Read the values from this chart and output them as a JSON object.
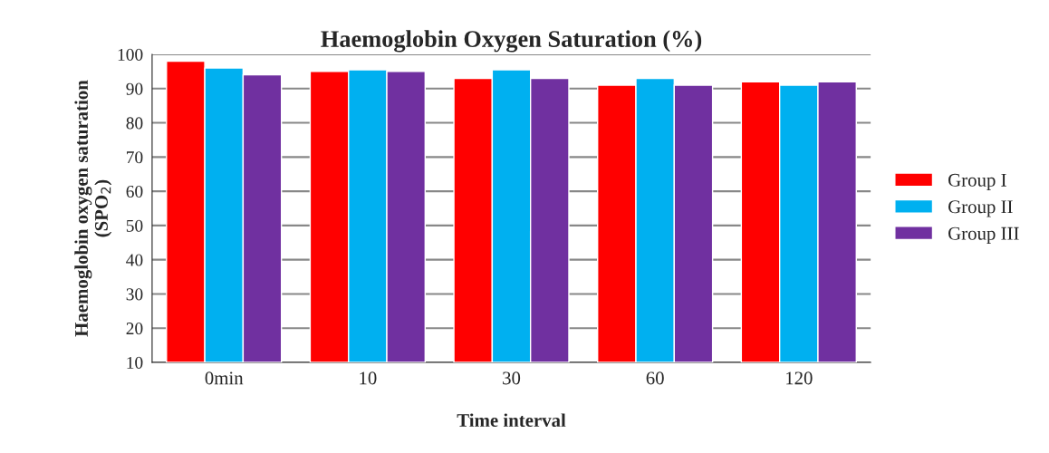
{
  "chart_data": {
    "type": "bar",
    "title": "Haemoglobin Oxygen Saturation (%)",
    "xlabel": "Time interval",
    "ylabel": "Haemoglobin oxygen saturation\n(SPO$_{2}$)",
    "categories": [
      "0min",
      "10",
      "30",
      "60",
      "120"
    ],
    "series": [
      {
        "name": "Group I",
        "color": "#ff0000",
        "values": [
          98,
          95,
          93,
          91,
          92
        ]
      },
      {
        "name": "Group II",
        "color": "#00b0f0",
        "values": [
          96,
          95.5,
          95.5,
          93,
          91
        ]
      },
      {
        "name": "Group III",
        "color": "#7030a0",
        "values": [
          94,
          95,
          93,
          91,
          92
        ]
      }
    ],
    "ylim": [
      10,
      100
    ],
    "yticks": [
      10,
      20,
      30,
      40,
      50,
      60,
      70,
      80,
      90,
      100
    ],
    "grid": "y",
    "legend": "right"
  }
}
